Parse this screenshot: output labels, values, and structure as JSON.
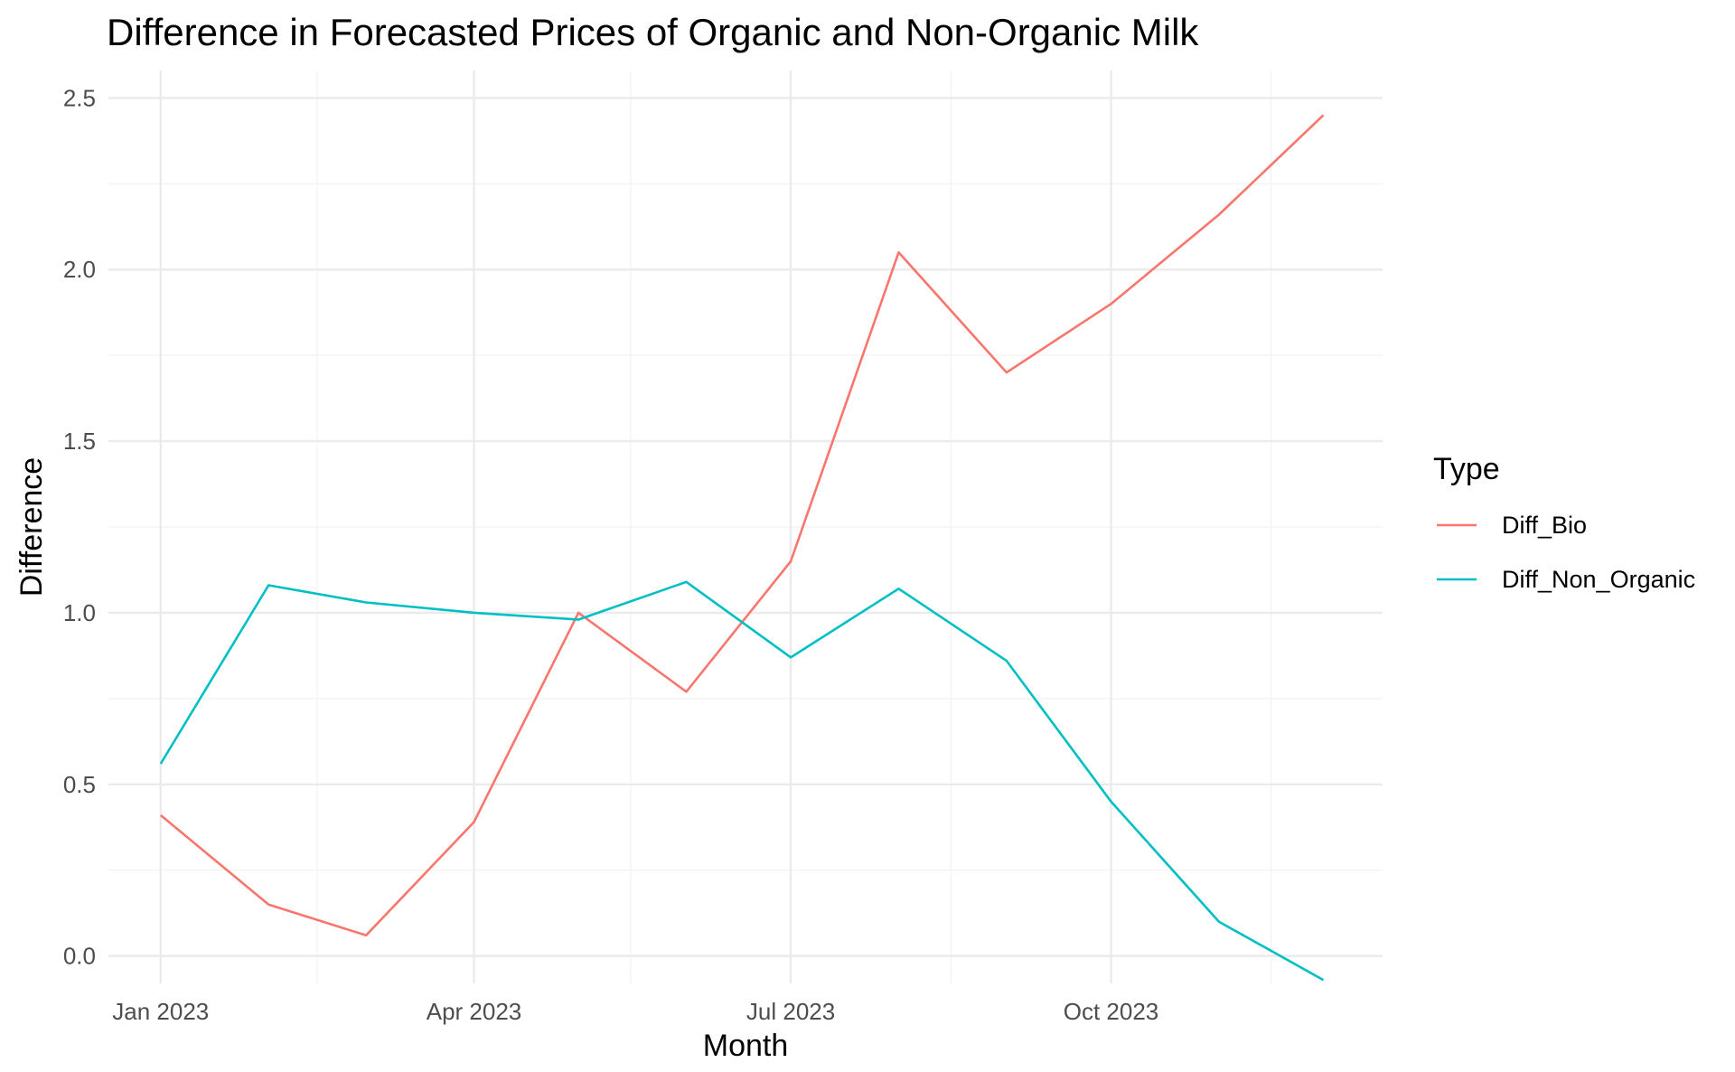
{
  "chart_data": {
    "type": "line",
    "title": "Difference in Forecasted Prices of Organic and Non-Organic Milk",
    "xlabel": "Month",
    "ylabel": "Difference",
    "x": [
      "2023-01-01",
      "2023-02-01",
      "2023-03-01",
      "2023-04-01",
      "2023-05-01",
      "2023-06-01",
      "2023-07-01",
      "2023-08-01",
      "2023-09-01",
      "2023-10-01",
      "2023-11-01",
      "2023-12-01"
    ],
    "x_ticks": [
      {
        "date": "2023-01-01",
        "label": "Jan 2023"
      },
      {
        "date": "2023-04-01",
        "label": "Apr 2023"
      },
      {
        "date": "2023-07-01",
        "label": "Jul 2023"
      },
      {
        "date": "2023-10-01",
        "label": "Oct 2023"
      }
    ],
    "y_ticks": [
      0.0,
      0.5,
      1.0,
      1.5,
      2.0,
      2.5
    ],
    "y_tick_labels": [
      "0.0",
      "0.5",
      "1.0",
      "1.5",
      "2.0",
      "2.5"
    ],
    "ylim": [
      -0.08,
      2.58
    ],
    "xlim": [
      "2022-12-17",
      "2023-12-18"
    ],
    "grid": true,
    "legend": {
      "title": "Type",
      "placement": "right"
    },
    "series": [
      {
        "name": "Diff_Bio",
        "color": "#F8766D",
        "values": [
          0.41,
          0.15,
          0.06,
          0.39,
          1.0,
          0.77,
          1.15,
          2.05,
          1.7,
          1.9,
          2.16,
          2.45
        ]
      },
      {
        "name": "Diff_Non_Organic",
        "color": "#00BFC4",
        "values": [
          0.56,
          1.08,
          1.03,
          1.0,
          0.98,
          1.09,
          0.87,
          1.07,
          0.86,
          0.45,
          0.1,
          -0.07
        ]
      }
    ]
  }
}
